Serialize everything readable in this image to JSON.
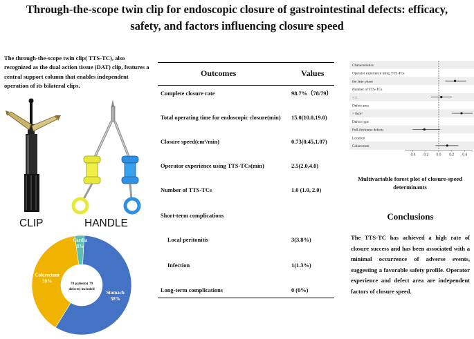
{
  "title": {
    "line1": "Through-the-scope twin clip for endoscopic closure of gastrointestinal defects: efficacy,",
    "line2": "safety, and factors influencing closure speed"
  },
  "intro_text": "The through-the-scope twin clip( TTS-TC), also recognized as the dual action tissue (DAT) clip, features a central support column that enables independent operation of its bilateral clips.",
  "device_labels": {
    "clip": "CLIP",
    "handle": "HANDLE"
  },
  "pie": {
    "center_text": "78 patients( 79 defects) included",
    "slices": [
      {
        "name": "Stomach",
        "pct_text": "58%",
        "value": 58,
        "color": "#4472c4"
      },
      {
        "name": "Colorectum",
        "pct_text": "39%",
        "value": 39,
        "color": "#f0b400"
      },
      {
        "name": "Cardia",
        "pct_text": "3%",
        "value": 3,
        "color": "#5bc0b0"
      }
    ]
  },
  "table": {
    "header_outcomes": "Outcomes",
    "header_values": "Values",
    "rows": [
      {
        "outcome": "Complete closure rate",
        "value": "98.7%（78/79）"
      },
      {
        "outcome": "Total operating time for endoscopic closure(min)",
        "value": "15.0(10.0,19.0)"
      },
      {
        "outcome": "Closure speed(cm²/min)",
        "value": "0.73(0.45,1.07)"
      },
      {
        "outcome": "Operator experience using TTS-TCs(min)",
        "value": "2.5(2.0,4.0)"
      },
      {
        "outcome": "Number of TTS-TCs",
        "value": "1.0 (1.0, 2.0)"
      },
      {
        "outcome": "Short-term complications",
        "value": ""
      },
      {
        "outcome": "Local peritonitis",
        "value": "3(3.8%)"
      },
      {
        "outcome": "Infection",
        "value": "1(1.3%)"
      },
      {
        "outcome": "Long-term complications",
        "value": "0  (0%)"
      }
    ]
  },
  "forest_plot": {
    "caption": "Multivariable forest plot of closure-speed determinants",
    "rows": [
      {
        "label": "Characteristics"
      },
      {
        "label": "Operator experience using TTS-TCs"
      },
      {
        "label": "the later phase",
        "est": 0.25,
        "lo": 0.1,
        "hi": 0.42
      },
      {
        "label": "Number of TTS-TCs"
      },
      {
        "label": "> 1",
        "est": 0.04,
        "lo": -0.12,
        "hi": 0.2
      },
      {
        "label": "Defect area"
      },
      {
        "label": "> 8cm²",
        "est": 0.35,
        "lo": 0.2,
        "hi": 0.52
      },
      {
        "label": "Defect type"
      },
      {
        "label": "Full-thickness defects",
        "est": -0.22,
        "lo": -0.4,
        "hi": 0.02
      },
      {
        "label": "Location"
      },
      {
        "label": "Colorectum",
        "est": 0.13,
        "lo": -0.05,
        "hi": 0.3
      }
    ],
    "x_ticks": [
      "-0.4",
      "-0.2",
      "0.0",
      "0.2",
      "0.4"
    ],
    "xlim": [
      -0.52,
      0.52
    ]
  },
  "conclusions": {
    "heading": "Conclusions",
    "text": "The TTS-TC has achieved a high rate of closure success and has been associated with a minimal occurrence of adverse events, suggesting a favorable safety profile. Operator experience and defect area are independent factors of closure speed."
  }
}
